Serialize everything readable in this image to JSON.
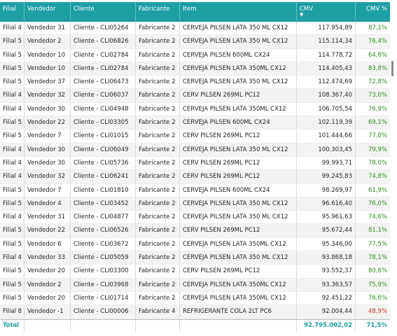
{
  "columns": [
    "Filial",
    "Vendedor",
    "Cliente",
    "Fabricante",
    "Item",
    "CMV",
    "CMV %"
  ],
  "sort_icon": "sort-descending-icon",
  "colors": {
    "header_bg": "#1e9fa4",
    "positive": "#2e8b1e",
    "negative": "#c0392b"
  },
  "rows": [
    {
      "filial": "Filial 4",
      "vendedor": "Vendedor 31",
      "cliente": "Cliente - CLI05264",
      "fabricante": "Fabricante 2",
      "item": "CERVEJA PILSEN LATA 350 ML CX12",
      "cmv": "117.954,89",
      "pct": "87,1%",
      "neg": false
    },
    {
      "filial": "Filial 5",
      "vendedor": "Vendedor 2",
      "cliente": "Cliente - CLI06826",
      "fabricante": "Fabricante 2",
      "item": "CERVEJA PILSEN LATA 350 ML CX12",
      "cmv": "115.114,34",
      "pct": "76,4%",
      "neg": false
    },
    {
      "filial": "Filial 5",
      "vendedor": "Vendedor 10",
      "cliente": "Cliente - CLI02784",
      "fabricante": "Fabricante 2",
      "item": "CERVEJA PILSEN 600ML CX24",
      "cmv": "114.778,72",
      "pct": "64,6%",
      "neg": false
    },
    {
      "filial": "Filial 5",
      "vendedor": "Vendedor 10",
      "cliente": "Cliente - CLI02784",
      "fabricante": "Fabricante 2",
      "item": "CERVEJA PILSEN LATA 350ML CX12",
      "cmv": "114.405,43",
      "pct": "83,8%",
      "neg": false
    },
    {
      "filial": "Filial 5",
      "vendedor": "Vendedor 37",
      "cliente": "Cliente - CLI06473",
      "fabricante": "Fabricante 2",
      "item": "CERVEJA PILSEN LATA 350 ML CX12",
      "cmv": "112.474,69",
      "pct": "72,8%",
      "neg": false
    },
    {
      "filial": "Filial 4",
      "vendedor": "Vendedor 32",
      "cliente": "Cliente - CLI06037",
      "fabricante": "Fabricante 2",
      "item": "CERV PILSEN 269ML PC12",
      "cmv": "108.367,40",
      "pct": "73,0%",
      "neg": false
    },
    {
      "filial": "Filial 4",
      "vendedor": "Vendedor 30",
      "cliente": "Cliente - CLI04948",
      "fabricante": "Fabricante 2",
      "item": "CERVEJA PILSEN LATA 350ML CX12",
      "cmv": "106.705,54",
      "pct": "76,9%",
      "neg": false
    },
    {
      "filial": "Filial 5",
      "vendedor": "Vendedor 22",
      "cliente": "Cliente - CLI03305",
      "fabricante": "Fabricante 2",
      "item": "CERVEJA PILSEN 600ML CX24",
      "cmv": "102.119,39",
      "pct": "69,1%",
      "neg": false
    },
    {
      "filial": "Filial 5",
      "vendedor": "Vendedor 7",
      "cliente": "Cliente - CLI01015",
      "fabricante": "Fabricante 2",
      "item": "CERV PILSEN 269ML PC12",
      "cmv": "101.444,66",
      "pct": "77,0%",
      "neg": false
    },
    {
      "filial": "Filial 4",
      "vendedor": "Vendedor 30",
      "cliente": "Cliente - CLI06049",
      "fabricante": "Fabricante 2",
      "item": "CERVEJA PILSEN LATA 350 ML CX12",
      "cmv": "100.303,45",
      "pct": "79,9%",
      "neg": false
    },
    {
      "filial": "Filial 4",
      "vendedor": "Vendedor 30",
      "cliente": "Cliente - CLI05736",
      "fabricante": "Fabricante 2",
      "item": "CERV PILSEN 269ML PC12",
      "cmv": "99.993,71",
      "pct": "78,0%",
      "neg": false
    },
    {
      "filial": "Filial 4",
      "vendedor": "Vendedor 32",
      "cliente": "Cliente - CLI06241",
      "fabricante": "Fabricante 2",
      "item": "CERV PILSEN 269ML PC12",
      "cmv": "99.245,83",
      "pct": "74,8%",
      "neg": false
    },
    {
      "filial": "Filial 5",
      "vendedor": "Vendedor 7",
      "cliente": "Cliente - CLI01810",
      "fabricante": "Fabricante 2",
      "item": "CERVEJA PILSEN 600ML CX24",
      "cmv": "98.269,97",
      "pct": "61,9%",
      "neg": false
    },
    {
      "filial": "Filial 5",
      "vendedor": "Vendedor 4",
      "cliente": "Cliente - CLI03452",
      "fabricante": "Fabricante 2",
      "item": "CERVEJA PILSEN LATA 350 ML CX12",
      "cmv": "96.616,40",
      "pct": "76,0%",
      "neg": false
    },
    {
      "filial": "Filial 4",
      "vendedor": "Vendedor 31",
      "cliente": "Cliente - CLI04877",
      "fabricante": "Fabricante 2",
      "item": "CERVEJA PILSEN LATA 350 ML CX12",
      "cmv": "95.961,63",
      "pct": "74,6%",
      "neg": false
    },
    {
      "filial": "Filial 5",
      "vendedor": "Vendedor 22",
      "cliente": "Cliente - CLI06526",
      "fabricante": "Fabricante 2",
      "item": "CERV PILSEN 269ML PC12",
      "cmv": "95.672,44",
      "pct": "81,1%",
      "neg": false
    },
    {
      "filial": "Filial 5",
      "vendedor": "Vendedor 6",
      "cliente": "Cliente - CLI03672",
      "fabricante": "Fabricante 2",
      "item": "CERVEJA PILSEN LATA 350ML CX12",
      "cmv": "95.346,00",
      "pct": "77,5%",
      "neg": false
    },
    {
      "filial": "Filial 4",
      "vendedor": "Vendedor 33",
      "cliente": "Cliente - CLI05059",
      "fabricante": "Fabricante 2",
      "item": "CERVEJA PILSEN LATA 350 ML CX12",
      "cmv": "93.868,18",
      "pct": "78,1%",
      "neg": false
    },
    {
      "filial": "Filial 5",
      "vendedor": "Vendedor 20",
      "cliente": "Cliente - CLI03300",
      "fabricante": "Fabricante 2",
      "item": "CERV PILSEN 269ML PC12",
      "cmv": "93.552,37",
      "pct": "80,6%",
      "neg": false
    },
    {
      "filial": "Filial 5",
      "vendedor": "Vendedor 2",
      "cliente": "Cliente - CLI03968",
      "fabricante": "Fabricante 2",
      "item": "CERVEJA PILSEN LATA 350ML CX12",
      "cmv": "93.363,57",
      "pct": "75,9%",
      "neg": false
    },
    {
      "filial": "Filial 5",
      "vendedor": "Vendedor 20",
      "cliente": "Cliente - CLI01714",
      "fabricante": "Fabricante 2",
      "item": "CERVEJA PILSEN LATA 350ML CX12",
      "cmv": "92.451,22",
      "pct": "76,6%",
      "neg": false
    },
    {
      "filial": "Filial 8",
      "vendedor": "Vendedor -1",
      "cliente": "Cliente - CLI00006",
      "fabricante": "Fabricante 4",
      "item": "REFRIGERANTE COLA 2LT PC6",
      "cmv": "92.004,44",
      "pct": "48,9%",
      "neg": true
    }
  ],
  "total": {
    "label": "Total",
    "cmv": "92.795.002,02",
    "pct": "71,5%"
  }
}
